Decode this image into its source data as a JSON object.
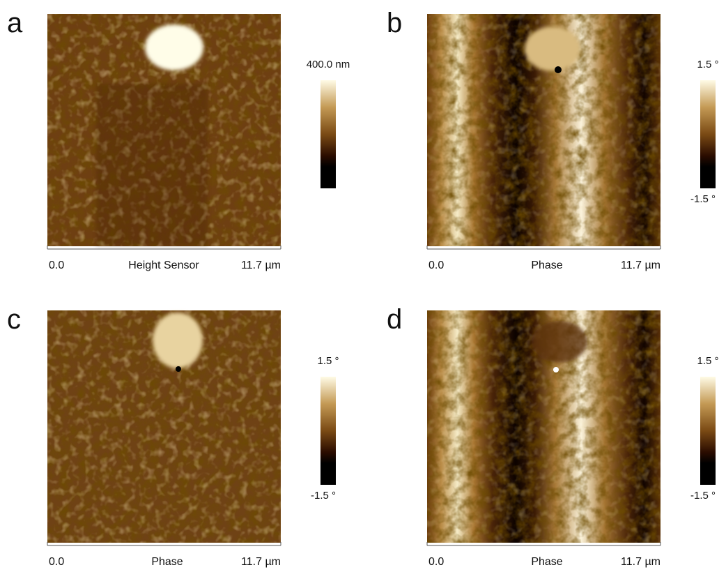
{
  "panels": [
    {
      "letter": "a",
      "start": "0.0",
      "channel": "Height Sensor",
      "end": "11.7 µm",
      "scale_max": "400.0 nm"
    },
    {
      "letter": "b",
      "start": "0.0",
      "channel": "Phase",
      "end": "11.7 µm",
      "scale_max": "1.5 °",
      "scale_min": "-1.5 °"
    },
    {
      "letter": "c",
      "start": "0.0",
      "channel": "Phase",
      "end": "11.7 µm",
      "scale_max": "1.5 °",
      "scale_min": "-1.5 °"
    },
    {
      "letter": "d",
      "start": "0.0",
      "channel": "Phase",
      "end": "11.7 µm",
      "scale_max": "1.5 °",
      "scale_min": "-1.5 °"
    }
  ]
}
